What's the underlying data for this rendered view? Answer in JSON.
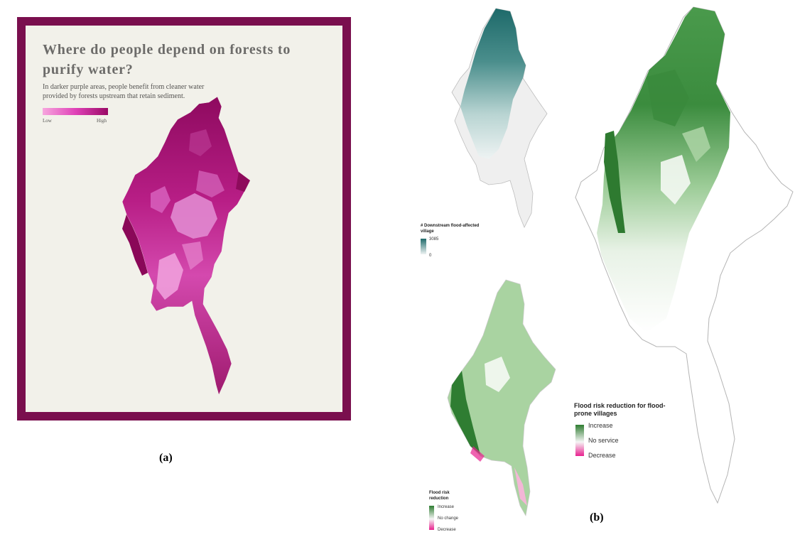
{
  "panel_a": {
    "title": "Where do people depend on forests to purify water?",
    "subtitle": "In darker purple areas, people benefit from cleaner water provided by forests upstream that retain sediment.",
    "legend": {
      "low": "Low",
      "high": "High"
    },
    "colors": {
      "frame": "#7a0f4e",
      "background": "#f2f1ea",
      "low": "#f7a6de",
      "high": "#9a0a66"
    },
    "caption": "(a)"
  },
  "panel_b": {
    "caption": "(b)",
    "map_downstream": {
      "legend_title": "# Downstream flood-affected village",
      "legend_max": "3085",
      "legend_min": "0",
      "colors": {
        "high": "#1f6b6b",
        "low": "#eef3f3"
      }
    },
    "map_large": {
      "legend_title": "Flood risk reduction for flood-prone villages",
      "legend_items": [
        "Increase",
        "No service",
        "Decrease"
      ],
      "colors": {
        "increase": "#2f7d32",
        "none": "#f5f5f5",
        "decrease": "#e8218f"
      }
    },
    "map_small": {
      "legend_title": "Flood risk reduction",
      "legend_items": [
        "Increase",
        "No change",
        "Decrease"
      ],
      "colors": {
        "increase": "#2f7d32",
        "none": "#f5f5f5",
        "decrease": "#e8218f"
      }
    }
  }
}
